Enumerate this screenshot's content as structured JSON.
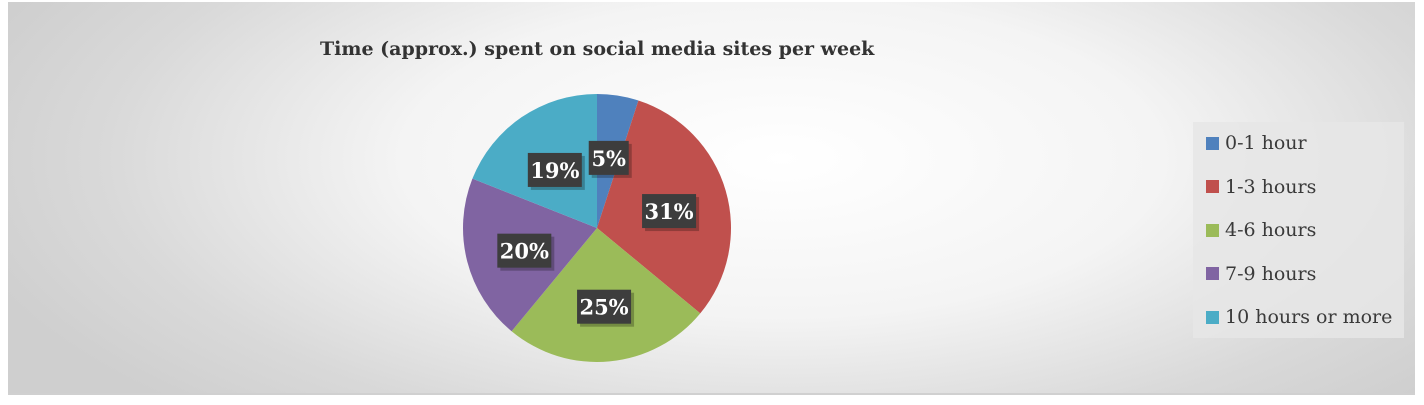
{
  "chart_data": {
    "type": "pie",
    "title": "Time (approx.) spent on social media sites per week",
    "categories": [
      "0-1 hour",
      "1-3 hours",
      "4-6 hours",
      "7-9 hours",
      "10 hours or more"
    ],
    "values": [
      5,
      31,
      25,
      20,
      19
    ],
    "data_labels": [
      "5%",
      "31%",
      "25%",
      "20%",
      "19%"
    ],
    "colors": [
      "#4f81bd",
      "#c0504d",
      "#9bbb59",
      "#8064a2",
      "#4bacc6"
    ],
    "legend_position": "right",
    "start_angle": "top, clockwise"
  }
}
